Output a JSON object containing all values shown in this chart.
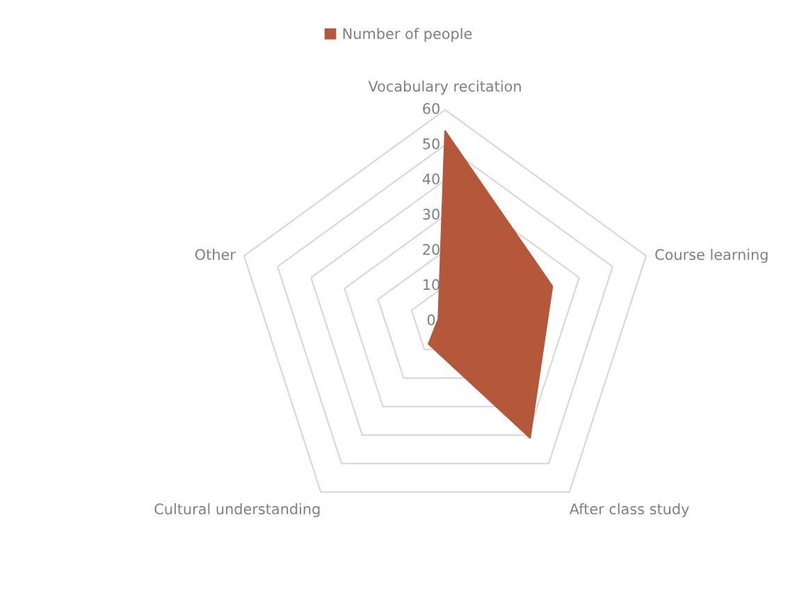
{
  "chart_data": {
    "type": "radar",
    "categories": [
      "Vocabulary recitation",
      "Course learning",
      "After class study",
      "Cultural understanding",
      "Other"
    ],
    "series": [
      {
        "name": "Number of people",
        "color": "#b5573b",
        "values": [
          54,
          32,
          41,
          8,
          2
        ]
      }
    ],
    "ylim": [
      0,
      60
    ],
    "yticks": [
      0,
      10,
      20,
      30,
      40,
      50,
      60
    ],
    "grid": true,
    "legend": "top"
  }
}
